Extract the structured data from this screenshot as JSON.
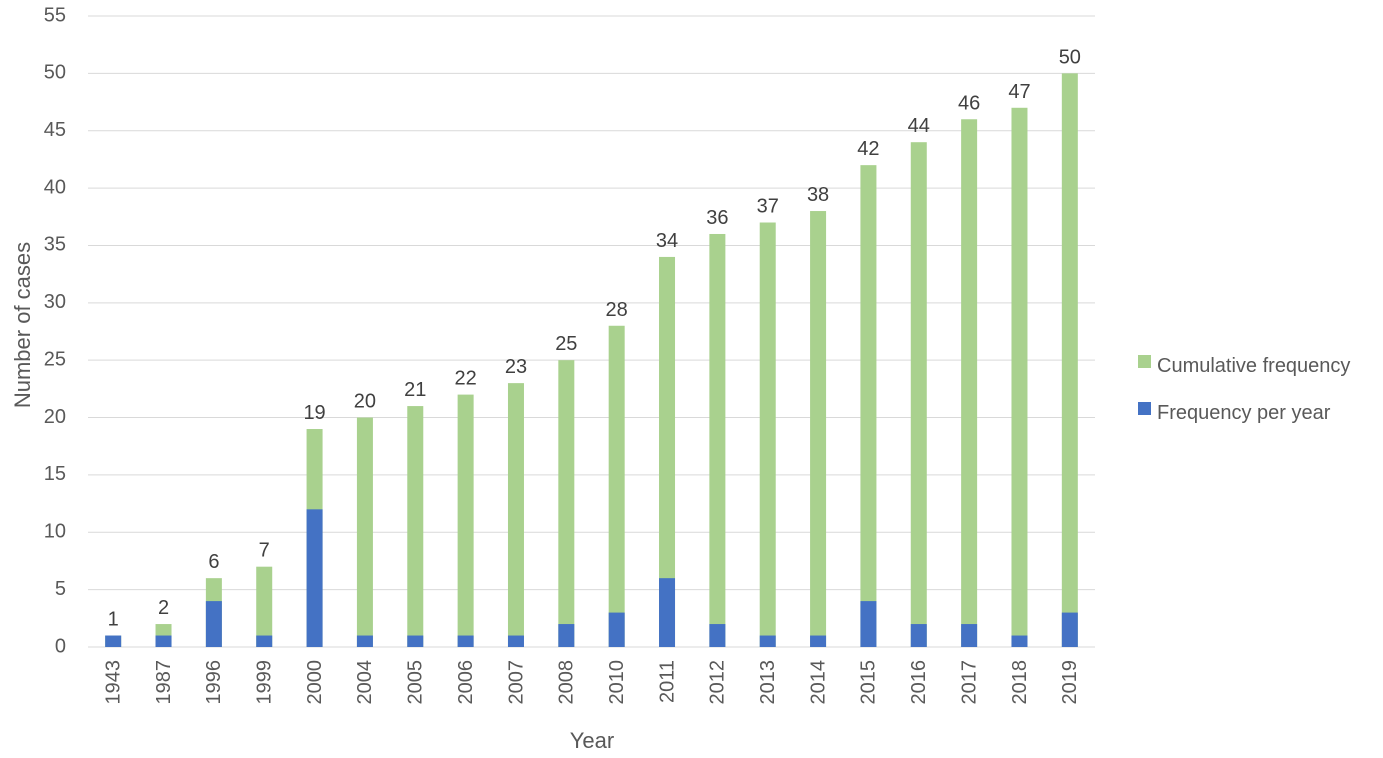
{
  "chart_data": {
    "type": "bar",
    "stacking": "overlap",
    "categories": [
      "1943",
      "1987",
      "1996",
      "1999",
      "2000",
      "2004",
      "2005",
      "2006",
      "2007",
      "2008",
      "2010",
      "2011",
      "2012",
      "2013",
      "2014",
      "2015",
      "2016",
      "2017",
      "2018",
      "2019"
    ],
    "series": [
      {
        "name": "Cumulative frequency",
        "color": "#a9d18e",
        "values": [
          1,
          2,
          6,
          7,
          19,
          20,
          21,
          22,
          23,
          25,
          28,
          34,
          36,
          37,
          38,
          42,
          44,
          46,
          47,
          50
        ],
        "data_labels": true
      },
      {
        "name": "Frequency per year",
        "color": "#4472c4",
        "values": [
          1,
          1,
          4,
          1,
          12,
          1,
          1,
          1,
          1,
          2,
          3,
          6,
          2,
          1,
          1,
          4,
          2,
          2,
          1,
          3
        ],
        "data_labels": false
      }
    ],
    "title": "",
    "xlabel": "Year",
    "ylabel": "Number of cases",
    "ylim": [
      0,
      55
    ],
    "yticks": [
      0,
      5,
      10,
      15,
      20,
      25,
      30,
      35,
      40,
      45,
      50,
      55
    ],
    "grid": true,
    "legend_position": "right"
  }
}
